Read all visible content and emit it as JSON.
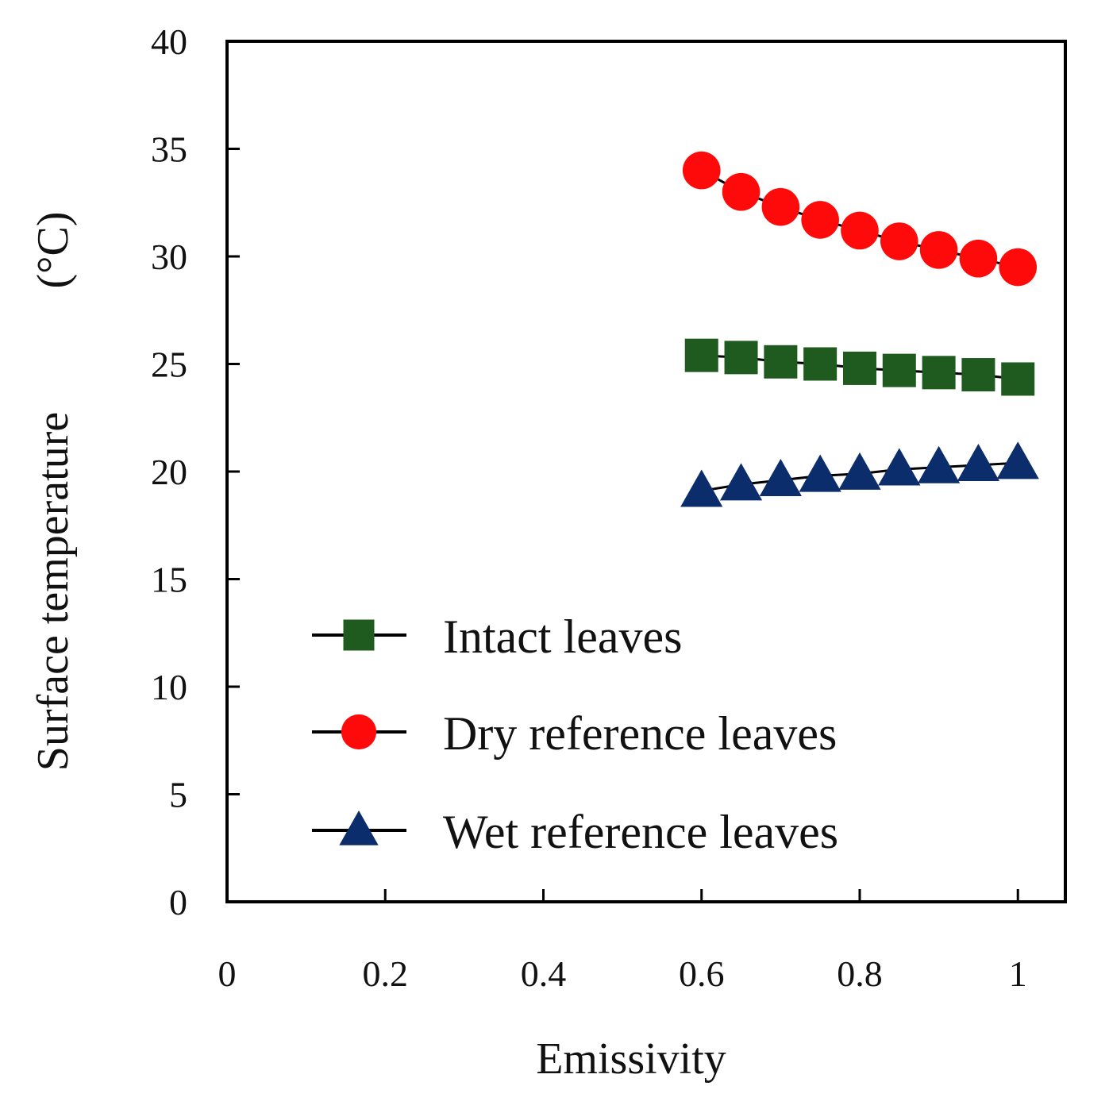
{
  "chart_data": {
    "type": "line",
    "xlabel": "Emissivity",
    "ylabel": "Surface temperature",
    "ylabel_unit": "(°C)",
    "xlim": [
      0,
      1.06
    ],
    "ylim": [
      0,
      40
    ],
    "xticks": [
      0,
      0.2,
      0.4,
      0.6,
      0.8,
      1
    ],
    "xtick_labels": [
      "0",
      "0.2",
      "0.4",
      "0.6",
      "0.8",
      "1"
    ],
    "yticks": [
      0,
      5,
      10,
      15,
      20,
      25,
      30,
      35,
      40
    ],
    "ytick_labels": [
      "0",
      "5",
      "10",
      "15",
      "20",
      "25",
      "30",
      "35",
      "40"
    ],
    "grid": false,
    "legend_position": "bottom-left",
    "x": [
      0.6,
      0.65,
      0.7,
      0.75,
      0.8,
      0.85,
      0.9,
      0.95,
      1.0
    ],
    "series": [
      {
        "name": "Intact leaves",
        "marker": "square",
        "color": "#1f5a1f",
        "values": [
          25.4,
          25.3,
          25.1,
          25.0,
          24.8,
          24.7,
          24.6,
          24.5,
          24.3
        ]
      },
      {
        "name": "Dry reference leaves",
        "marker": "circle",
        "color": "#ff0a0a",
        "values": [
          34.0,
          33.0,
          32.3,
          31.7,
          31.2,
          30.7,
          30.3,
          29.9,
          29.5
        ]
      },
      {
        "name": "Wet reference leaves",
        "marker": "triangle",
        "color": "#0c2d6b",
        "values": [
          19.1,
          19.4,
          19.6,
          19.8,
          19.9,
          20.1,
          20.2,
          20.3,
          20.4
        ]
      }
    ]
  }
}
